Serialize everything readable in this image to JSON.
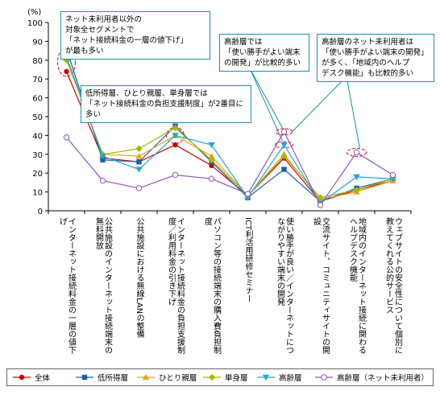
{
  "chart_data": {
    "type": "line",
    "ylabel": "(%)",
    "ylim": [
      0,
      100
    ],
    "yticks": [
      0,
      10,
      20,
      30,
      40,
      50,
      60,
      70,
      80,
      90,
      100
    ],
    "grid": false,
    "legend_position": "bottom",
    "categories": [
      "インターネット接続料金の一層の値下げ",
      "公共施設のインターネット接続端末の無料開放",
      "公共施設における無線LANの整備",
      "インターネット接続料金の負担支援制度／利用料金の引き下げ",
      "パソコン等の接続端末の購入費負担制度",
      "ICT利活用研修セミナー",
      "使い勝手が良い／インターネットにつながりやすい端末の開発",
      "交流サイト、コミュニティサイトの開設",
      "地域内のインターネット接続に関わるヘルプデスク機能",
      "ウェブサイトの安全性について個別に教えてくれる公的サービス"
    ],
    "series": [
      {
        "name": "全体",
        "color": "#cc0000",
        "marker": "circle",
        "values": [
          74,
          28,
          26,
          35,
          24,
          8,
          28,
          5,
          11,
          16
        ]
      },
      {
        "name": "低所得層",
        "color": "#1f5fa8",
        "marker": "square",
        "values": [
          86,
          27,
          26,
          45,
          26,
          7,
          22,
          5,
          12,
          17
        ]
      },
      {
        "name": "ひとり親層",
        "color": "#f0a020",
        "marker": "triangle",
        "values": [
          81,
          30,
          29,
          40,
          29,
          8,
          30,
          6,
          10,
          16
        ]
      },
      {
        "name": "単身層",
        "color": "#a8b800",
        "marker": "diamond",
        "values": [
          80,
          30,
          33,
          44,
          27,
          8,
          29,
          7,
          11,
          17
        ]
      },
      {
        "name": "高齢層",
        "color": "#20a8d8",
        "marker": "triangle-down",
        "values": [
          82,
          29,
          22,
          40,
          35,
          7,
          35,
          4,
          18,
          17
        ]
      },
      {
        "name": "高齢層（ネット未利用者）",
        "color": "#9055b8",
        "marker": "open-circle",
        "values": [
          39,
          16,
          12,
          19,
          17,
          9,
          42,
          3,
          31,
          19
        ]
      }
    ],
    "annotations": [
      {
        "lines": [
          "ネット未利用者以外の",
          "対象全セグメントで",
          "「ネット接続料金の一層の値下げ」",
          "が最も多い"
        ]
      },
      {
        "lines": [
          "低所得層、ひとり親層、単身層では",
          "「ネット接続料金の負担支援制度」が2番目に",
          "多い"
        ]
      },
      {
        "lines": [
          "高齢層では",
          "「使い勝手がよい端末",
          "の開発」が比較的多い"
        ]
      },
      {
        "lines": [
          "高齢層のネット未利用者は",
          "「使い勝手がよい端末の開発」",
          "が多く、「地域内のヘルプ",
          "デスク機能」も比較的多い"
        ]
      }
    ]
  }
}
